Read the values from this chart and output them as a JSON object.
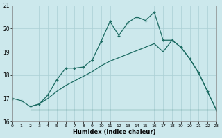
{
  "xlabel": "Humidex (Indice chaleur)",
  "xlim": [
    0,
    23
  ],
  "ylim": [
    16,
    21
  ],
  "yticks": [
    16,
    17,
    18,
    19,
    20,
    21
  ],
  "xticks": [
    0,
    1,
    2,
    3,
    4,
    5,
    6,
    7,
    8,
    9,
    10,
    11,
    12,
    13,
    14,
    15,
    16,
    17,
    18,
    19,
    20,
    21,
    22,
    23
  ],
  "color": "#1b6b62",
  "bg_color": "#cce8ec",
  "grid_color": "#aacfd4",
  "line1_x": [
    0,
    1,
    2,
    3,
    4,
    5,
    6,
    7,
    8,
    9,
    10,
    11,
    12,
    13,
    14,
    15,
    16,
    17,
    18,
    19,
    20,
    21,
    22,
    23
  ],
  "line1_y": [
    17.0,
    16.9,
    16.65,
    16.75,
    17.15,
    17.8,
    18.3,
    18.3,
    18.35,
    18.65,
    19.45,
    20.3,
    19.7,
    20.25,
    20.5,
    20.35,
    20.7,
    19.5,
    19.5,
    19.2,
    18.7,
    18.1,
    17.3,
    16.5
  ],
  "line2_x": [
    2,
    23
  ],
  "line2_y": [
    16.5,
    16.5
  ],
  "line3_x": [
    2,
    3,
    4,
    5,
    6,
    7,
    8,
    9,
    10,
    11,
    12,
    13,
    14,
    15,
    16,
    17,
    18,
    19,
    20,
    21,
    22,
    23
  ],
  "line3_y": [
    16.65,
    16.75,
    17.0,
    17.3,
    17.55,
    17.75,
    17.95,
    18.15,
    18.4,
    18.6,
    18.75,
    18.9,
    19.05,
    19.2,
    19.35,
    19.0,
    19.5,
    19.2,
    18.7,
    18.1,
    17.3,
    16.5
  ]
}
